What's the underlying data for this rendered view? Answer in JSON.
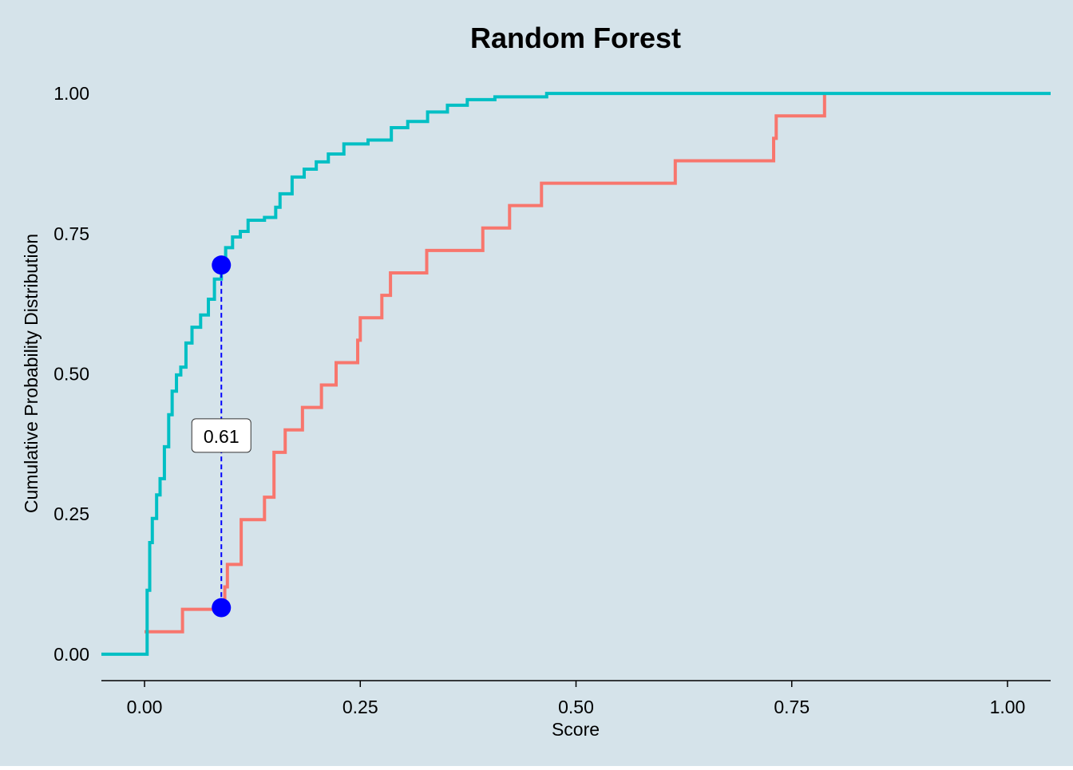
{
  "chart_data": {
    "type": "step",
    "title": "Random Forest",
    "x_label": "Score",
    "y_label": "Cumulative Probability Distribution",
    "xlim": [
      -0.05,
      1.05
    ],
    "ylim": [
      -0.05,
      1.05
    ],
    "xticks": [
      {
        "value": 0,
        "label": "0.00"
      },
      {
        "value": 0.25,
        "label": "0.25"
      },
      {
        "value": 0.5,
        "label": "0.50"
      },
      {
        "value": 0.75,
        "label": "0.75"
      },
      {
        "value": 1,
        "label": "1.00"
      }
    ],
    "yticks": [
      {
        "value": 0,
        "label": "0.00"
      },
      {
        "value": 0.25,
        "label": "0.25"
      },
      {
        "value": 0.5,
        "label": "0.50"
      },
      {
        "value": 0.75,
        "label": "0.75"
      },
      {
        "value": 1,
        "label": "1.00"
      }
    ],
    "series": [
      {
        "color": "#F8766D",
        "x": [
          0,
          0.044,
          0.093,
          0.096,
          0.112,
          0.139,
          0.15,
          0.163,
          0.183,
          0.205,
          0.222,
          0.247,
          0.25,
          0.275,
          0.285,
          0.327,
          0.392,
          0.423,
          0.46,
          0.615,
          0.729,
          0.732,
          0.788
        ],
        "values": [
          0.04,
          0.08,
          0.12,
          0.16,
          0.24,
          0.28,
          0.36,
          0.4,
          0.44,
          0.48,
          0.52,
          0.56,
          0.6,
          0.64,
          0.68,
          0.72,
          0.76,
          0.8,
          0.84,
          0.88,
          0.92,
          0.96,
          1.0
        ]
      },
      {
        "color": "#00BFC4",
        "x": [
          -0.05,
          0.003,
          0.006,
          0.009,
          0.014,
          0.018,
          0.023,
          0.028,
          0.032,
          0.037,
          0.042,
          0.048,
          0.055,
          0.065,
          0.074,
          0.081,
          0.089,
          0.094,
          0.102,
          0.111,
          0.12,
          0.139,
          0.152,
          0.157,
          0.171,
          0.185,
          0.199,
          0.213,
          0.231,
          0.259,
          0.286,
          0.305,
          0.328,
          0.351,
          0.374,
          0.406,
          0.466,
          1.05
        ],
        "values": [
          0,
          0.114,
          0.199,
          0.242,
          0.284,
          0.313,
          0.37,
          0.427,
          0.469,
          0.498,
          0.512,
          0.555,
          0.583,
          0.605,
          0.633,
          0.669,
          0.694,
          0.725,
          0.744,
          0.754,
          0.774,
          0.779,
          0.797,
          0.821,
          0.851,
          0.865,
          0.878,
          0.892,
          0.91,
          0.917,
          0.939,
          0.95,
          0.967,
          0.979,
          0.989,
          0.994,
          1.0,
          1.0
        ]
      }
    ],
    "annotation": {
      "x": 0.089,
      "y1": 0.694,
      "y2": 0.083,
      "label": "0.61",
      "color": "#0000FF"
    },
    "background": "#D5E3EA"
  }
}
